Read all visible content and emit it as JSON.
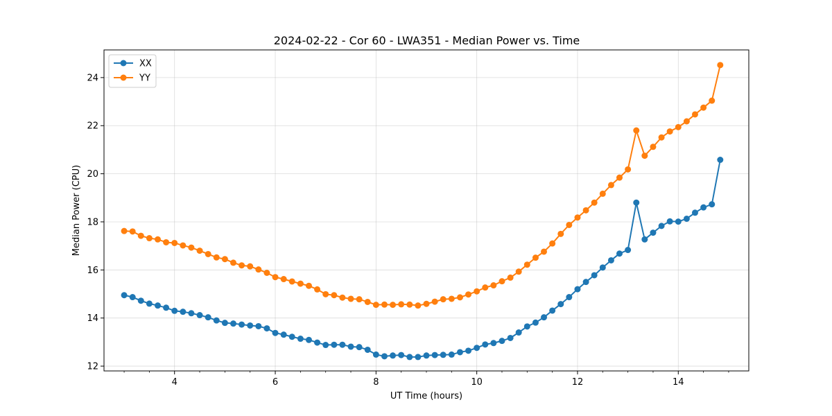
{
  "chart_data": {
    "type": "line",
    "title": "2024-02-22 - Cor 60 - LWA351 - Median Power vs. Time",
    "xlabel": "UT Time (hours)",
    "ylabel": "Median Power (CPU)",
    "xlim": [
      2.6,
      15.4
    ],
    "ylim": [
      11.8,
      25.15
    ],
    "xticks": [
      4,
      6,
      8,
      10,
      12,
      14
    ],
    "yticks": [
      12,
      14,
      16,
      18,
      20,
      22,
      24
    ],
    "grid": true,
    "legend": "top-left",
    "x": [
      3.0,
      3.167,
      3.333,
      3.5,
      3.667,
      3.833,
      4.0,
      4.167,
      4.333,
      4.5,
      4.667,
      4.833,
      5.0,
      5.167,
      5.333,
      5.5,
      5.667,
      5.833,
      6.0,
      6.167,
      6.333,
      6.5,
      6.667,
      6.833,
      7.0,
      7.167,
      7.333,
      7.5,
      7.667,
      7.833,
      8.0,
      8.167,
      8.333,
      8.5,
      8.667,
      8.833,
      9.0,
      9.167,
      9.333,
      9.5,
      9.667,
      9.833,
      10.0,
      10.167,
      10.333,
      10.5,
      10.667,
      10.833,
      11.0,
      11.167,
      11.333,
      11.5,
      11.667,
      11.833,
      12.0,
      12.167,
      12.333,
      12.5,
      12.667,
      12.833,
      13.0,
      13.167,
      13.333,
      13.5,
      13.667,
      13.833,
      14.0,
      14.167,
      14.333,
      14.5,
      14.667,
      14.833
    ],
    "series": [
      {
        "name": "XX",
        "color": "#1f77b4",
        "values": [
          14.95,
          14.87,
          14.72,
          14.6,
          14.52,
          14.43,
          14.3,
          14.26,
          14.2,
          14.12,
          14.03,
          13.9,
          13.8,
          13.77,
          13.73,
          13.69,
          13.66,
          13.57,
          13.38,
          13.31,
          13.22,
          13.14,
          13.09,
          12.98,
          12.88,
          12.89,
          12.89,
          12.81,
          12.79,
          12.68,
          12.48,
          12.41,
          12.44,
          12.46,
          12.38,
          12.38,
          12.44,
          12.46,
          12.47,
          12.48,
          12.58,
          12.64,
          12.76,
          12.9,
          12.96,
          13.05,
          13.17,
          13.4,
          13.65,
          13.81,
          14.03,
          14.31,
          14.58,
          14.87,
          15.2,
          15.5,
          15.78,
          16.1,
          16.4,
          16.68,
          16.83,
          18.8,
          17.27,
          17.55,
          17.83,
          18.02,
          18.01,
          18.13,
          18.38,
          18.6,
          18.73,
          20.58
        ]
      },
      {
        "name": "YY",
        "color": "#ff7f0e",
        "values": [
          17.62,
          17.6,
          17.42,
          17.32,
          17.27,
          17.15,
          17.12,
          17.02,
          16.93,
          16.8,
          16.66,
          16.52,
          16.45,
          16.3,
          16.19,
          16.15,
          16.02,
          15.88,
          15.7,
          15.62,
          15.52,
          15.43,
          15.34,
          15.19,
          14.99,
          14.95,
          14.85,
          14.8,
          14.78,
          14.67,
          14.55,
          14.56,
          14.55,
          14.57,
          14.56,
          14.52,
          14.59,
          14.68,
          14.78,
          14.8,
          14.86,
          14.98,
          15.11,
          15.27,
          15.36,
          15.53,
          15.68,
          15.93,
          16.22,
          16.51,
          16.76,
          17.1,
          17.5,
          17.87,
          18.18,
          18.48,
          18.8,
          19.17,
          19.53,
          19.84,
          20.18,
          21.8,
          20.75,
          21.12,
          21.51,
          21.76,
          21.94,
          22.18,
          22.47,
          22.75,
          23.04,
          24.52
        ]
      }
    ]
  }
}
